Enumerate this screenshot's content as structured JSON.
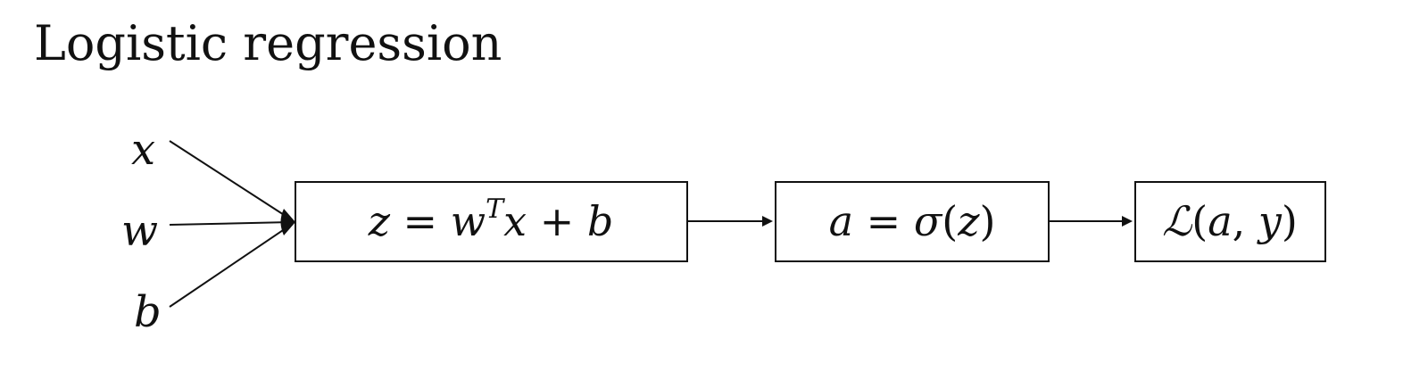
{
  "title": "Logistic regression",
  "inputs": [
    "x",
    "w",
    "b"
  ],
  "nodes": [
    {
      "id": "linear",
      "parts": [
        "z ",
        "= ",
        "w",
        "T",
        "x ",
        "+ ",
        "b"
      ]
    },
    {
      "id": "sigmoid",
      "parts": [
        "a ",
        "=  ",
        "σ",
        "(",
        "z",
        ")"
      ]
    },
    {
      "id": "loss",
      "parts": [
        "ℒ",
        "(",
        "a",
        ", ",
        "y",
        ")"
      ]
    }
  ],
  "colors": {
    "stroke": "#111111",
    "background": "#ffffff"
  }
}
